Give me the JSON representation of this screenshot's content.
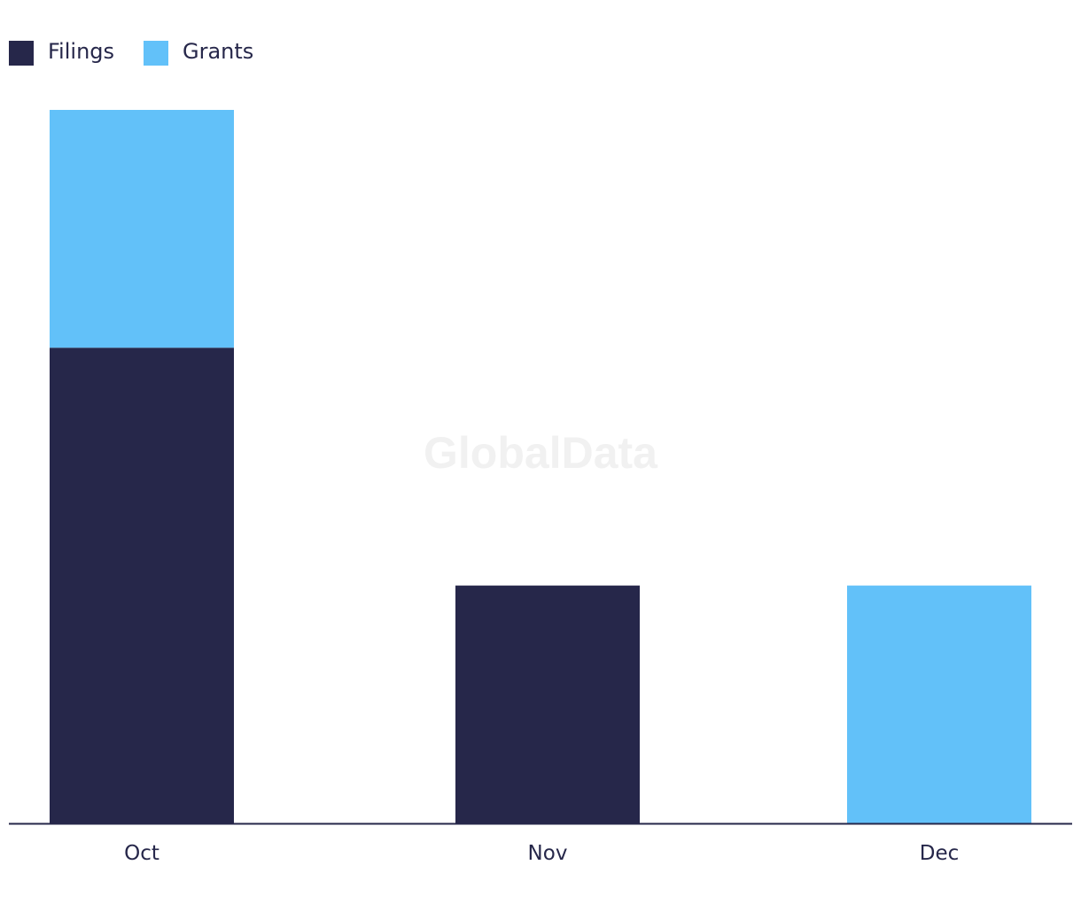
{
  "watermark": "GlobalData",
  "chart_data": {
    "type": "bar",
    "stacked": true,
    "categories": [
      "Oct",
      "Nov",
      "Dec"
    ],
    "series": [
      {
        "name": "Filings",
        "values": [
          2,
          1,
          0
        ],
        "color": "#26274a"
      },
      {
        "name": "Grants",
        "values": [
          1,
          0,
          1
        ],
        "color": "#62c1f9"
      }
    ],
    "title": "",
    "xlabel": "",
    "ylabel": "",
    "ylim": [
      0,
      3
    ],
    "grid": false,
    "legend_position": "top-left"
  }
}
